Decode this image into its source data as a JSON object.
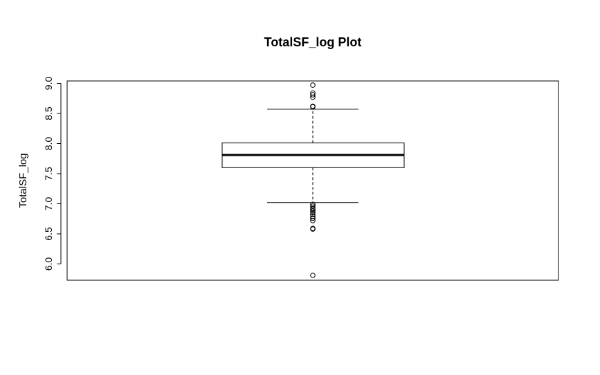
{
  "chart_data": {
    "type": "boxplot",
    "title": "TotalSF_log Plot",
    "xlabel": "",
    "ylabel": "TotalSF_log",
    "ylim": [
      5.73,
      9.04
    ],
    "yticks": [
      6.0,
      6.5,
      7.0,
      7.5,
      8.0,
      8.5,
      9.0
    ],
    "ytick_labels": [
      "6.0",
      "6.5",
      "7.0",
      "7.5",
      "8.0",
      "8.5",
      "9.0"
    ],
    "grid": false,
    "box": {
      "whisker_low": 7.02,
      "q1": 7.6,
      "median": 7.81,
      "q3": 8.01,
      "whisker_high": 8.57
    },
    "outliers": [
      8.97,
      8.84,
      8.81,
      8.77,
      8.62,
      8.61,
      6.99,
      6.96,
      6.93,
      6.91,
      6.88,
      6.85,
      6.82,
      6.79,
      6.76,
      6.72,
      6.59,
      6.58,
      5.81
    ]
  }
}
